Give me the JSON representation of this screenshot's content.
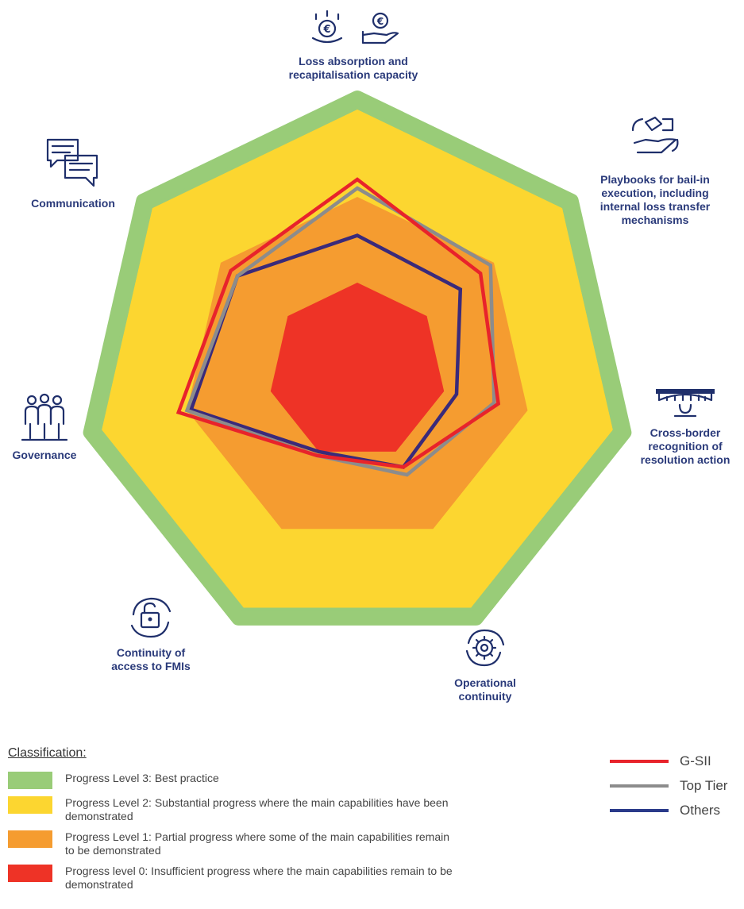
{
  "chart_data": {
    "type": "radar",
    "axes": [
      "Loss absorption and recapitalisation capacity",
      "Playbooks for bail-in execution, including internal loss transfer mechanisms",
      "Cross-border recognition of resolution action",
      "Operational continuity",
      "Continuity of access to FMIs",
      "Governance",
      "Communication"
    ],
    "axis_label_lines": [
      [
        "Loss absorption and",
        "recapitalisation capacity"
      ],
      [
        "Playbooks for bail-in",
        "execution, including",
        "internal loss transfer",
        "mechanisms"
      ],
      [
        "Cross-border",
        "recognition of",
        "resolution action"
      ],
      [
        "Operational",
        "continuity"
      ],
      [
        "Continuity of",
        "access to FMIs"
      ],
      [
        "Governance"
      ],
      [
        "Communication"
      ]
    ],
    "range": [
      0,
      3
    ],
    "levels": [
      {
        "level": 3,
        "label": "Progress Level 3: Best practice",
        "color": "#99CC78"
      },
      {
        "level": 2,
        "label": "Progress Level 2: Substantial progress where the main capabilities have been demonstrated",
        "color": "#FCD630"
      },
      {
        "level": 1,
        "label": "Progress Level 1: Partial progress where some of the main capabilities remain to be demonstrated",
        "color": "#F59C30"
      },
      {
        "level": 0,
        "label": "Progress level 0: Insufficient progress where the main capabilities remain to be demonstrated",
        "color": "#EE3326"
      }
    ],
    "series": [
      {
        "name": "G-SII",
        "color": "#E8232B",
        "values": [
          2.2,
          1.8,
          1.65,
          1.2,
          1.05,
          2.1,
          1.85
        ]
      },
      {
        "name": "Top Tier",
        "color": "#8C8C8C",
        "values": [
          2.1,
          1.95,
          1.6,
          1.3,
          1.05,
          2.0,
          1.75
        ]
      },
      {
        "name": "Others",
        "color": "#3A2A7A",
        "values": [
          1.55,
          1.5,
          1.15,
          1.2,
          1.0,
          1.95,
          1.75
        ]
      }
    ]
  },
  "legend": {
    "title": "Classification:"
  }
}
